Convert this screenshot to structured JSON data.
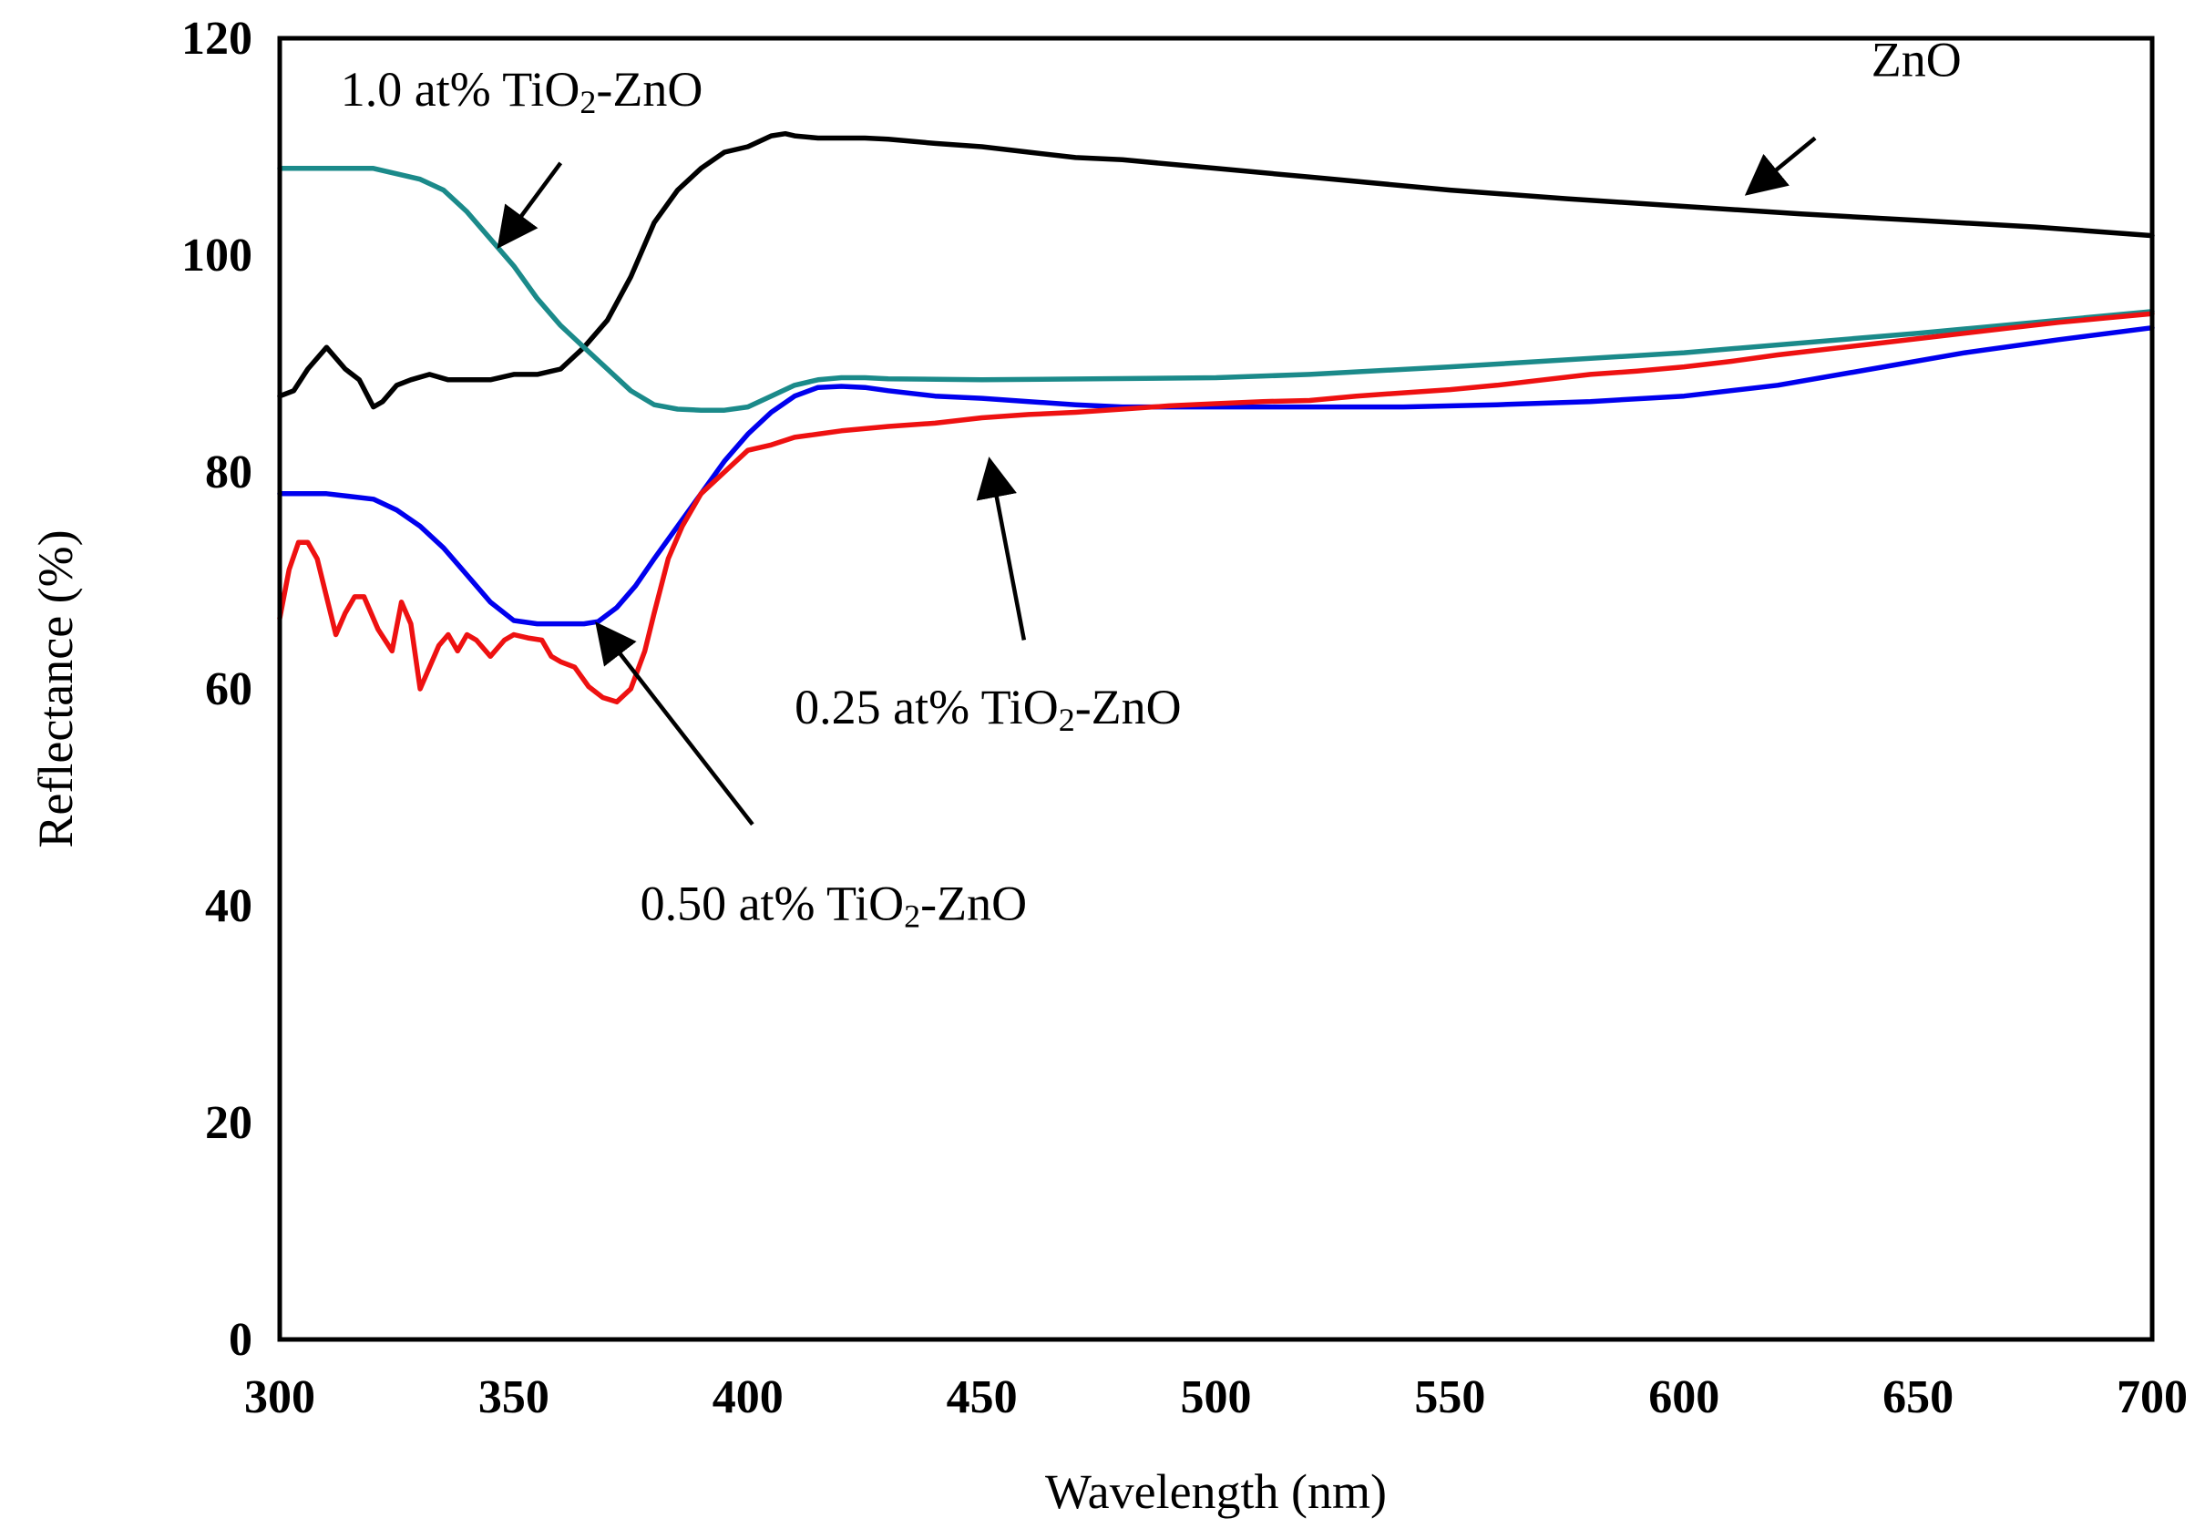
{
  "chart_data": {
    "type": "line",
    "title": "",
    "xlabel": "Wavelength (nm)",
    "ylabel": "Reflectance (%)",
    "xlim": [
      300,
      700
    ],
    "ylim": [
      0,
      120
    ],
    "xticks": [
      300,
      350,
      400,
      450,
      500,
      550,
      600,
      650,
      700
    ],
    "yticks": [
      0,
      20,
      40,
      60,
      80,
      100,
      120
    ],
    "grid": false,
    "series": [
      {
        "name": "ZnO",
        "label_main": "ZnO",
        "label_sub": "",
        "label_rest": "",
        "color": "#000000",
        "x": [
          300,
          303,
          306,
          310,
          314,
          317,
          320,
          322,
          325,
          328,
          332,
          336,
          340,
          345,
          350,
          355,
          360,
          365,
          370,
          375,
          380,
          385,
          390,
          395,
          400,
          405,
          408,
          410,
          415,
          420,
          425,
          430,
          440,
          450,
          460,
          470,
          480,
          500,
          520,
          550,
          575,
          600,
          625,
          650,
          675,
          700
        ],
        "y": [
          87,
          87.5,
          89.5,
          91.5,
          89.5,
          88.5,
          86,
          86.5,
          88,
          88.5,
          89,
          88.5,
          88.5,
          88.5,
          89,
          89,
          89.5,
          91.5,
          94,
          98,
          103,
          106,
          108,
          109.5,
          110,
          111,
          111.2,
          111,
          110.8,
          110.8,
          110.8,
          110.7,
          110.3,
          110,
          109.5,
          109,
          108.8,
          108,
          107.2,
          106,
          105.2,
          104.5,
          103.8,
          103.2,
          102.6,
          101.8
        ]
      },
      {
        "name": "1.0 at% TiO2-ZnO",
        "label_main": "1.0 at% TiO",
        "label_sub": "2",
        "label_rest": "-ZnO",
        "color": "#1b8a8a",
        "x": [
          300,
          310,
          320,
          330,
          335,
          340,
          345,
          350,
          355,
          360,
          365,
          370,
          375,
          380,
          385,
          390,
          395,
          400,
          405,
          410,
          415,
          420,
          425,
          430,
          450,
          500,
          520,
          550,
          600,
          650,
          700
        ],
        "y": [
          108,
          108,
          108,
          107,
          106,
          104,
          101.5,
          99,
          96,
          93.5,
          91.5,
          89.5,
          87.5,
          86.2,
          85.8,
          85.7,
          85.7,
          86,
          87,
          88,
          88.5,
          88.7,
          88.7,
          88.6,
          88.5,
          88.7,
          89,
          89.7,
          91,
          92.8,
          94.8
        ]
      },
      {
        "name": "0.50 at% TiO2-ZnO",
        "label_main": "0.50 at% TiO",
        "label_sub": "2",
        "label_rest": "-ZnO",
        "color": "#0000ee",
        "x": [
          300,
          310,
          320,
          325,
          330,
          335,
          340,
          345,
          350,
          355,
          360,
          365,
          368,
          372,
          376,
          380,
          385,
          390,
          395,
          400,
          405,
          410,
          415,
          420,
          425,
          430,
          440,
          450,
          460,
          470,
          480,
          490,
          500,
          520,
          540,
          560,
          580,
          600,
          620,
          640,
          660,
          680,
          700
        ],
        "y": [
          78,
          78,
          77.5,
          76.5,
          75,
          73,
          70.5,
          68,
          66.3,
          66,
          66,
          66,
          66.2,
          67.5,
          69.5,
          72,
          75,
          78,
          81,
          83.5,
          85.5,
          87,
          87.8,
          87.9,
          87.8,
          87.5,
          87,
          86.8,
          86.5,
          86.2,
          86,
          86,
          86,
          86,
          86,
          86.2,
          86.5,
          87,
          88,
          89.5,
          91,
          92.2,
          93.3
        ]
      },
      {
        "name": "0.25 at% TiO2-ZnO",
        "label_main": "0.25 at% TiO",
        "label_sub": "2",
        "label_rest": "-ZnO",
        "color": "#ee1111",
        "x": [
          300,
          302,
          304,
          306,
          308,
          312,
          314,
          316,
          318,
          321,
          324,
          326,
          328,
          330,
          332,
          334,
          336,
          338,
          340,
          342,
          345,
          348,
          350,
          353,
          356,
          358,
          360,
          363,
          366,
          369,
          372,
          375,
          378,
          380,
          383,
          386,
          390,
          395,
          400,
          405,
          410,
          415,
          420,
          425,
          430,
          440,
          450,
          460,
          470,
          480,
          490,
          500,
          510,
          520,
          525,
          530,
          540,
          550,
          560,
          570,
          580,
          590,
          600,
          610,
          620,
          630,
          640,
          650,
          660,
          670,
          680,
          690,
          700
        ],
        "y": [
          66.5,
          71,
          73.5,
          73.5,
          72,
          65,
          67,
          68.5,
          68.5,
          65.5,
          63.5,
          68,
          66,
          60,
          62,
          64,
          65,
          63.5,
          65,
          64.5,
          63,
          64.5,
          65,
          64.7,
          64.5,
          63,
          62.5,
          62,
          60.2,
          59.2,
          58.8,
          60,
          63.5,
          67,
          72,
          75,
          78,
          80,
          82,
          82.5,
          83.2,
          83.5,
          83.8,
          84,
          84.2,
          84.5,
          85,
          85.3,
          85.5,
          85.8,
          86.1,
          86.3,
          86.5,
          86.6,
          86.8,
          87,
          87.3,
          87.6,
          88,
          88.5,
          89,
          89.3,
          89.7,
          90.2,
          90.8,
          91.3,
          91.8,
          92.3,
          92.8,
          93.3,
          93.8,
          94.2,
          94.6
        ]
      }
    ],
    "annotations": [
      {
        "series": "ZnO",
        "text_main": "ZnO",
        "text_sub": "",
        "text_rest": "",
        "text_x": 640,
        "text_y": 116.5,
        "arrow_from": [
          628,
          110.8
        ],
        "arrow_to": [
          615,
          106.2
        ]
      },
      {
        "series": "1.0 at% TiO2-ZnO",
        "text_main": "1.0 at% TiO",
        "text_sub": "2",
        "text_rest": "-ZnO",
        "text_x": 313,
        "text_y": 113.8,
        "arrow_from": [
          360,
          108.5
        ],
        "arrow_to": [
          348,
          101.5
        ]
      },
      {
        "series": "0.25 at% TiO2-ZnO",
        "text_main": "0.25 at% TiO",
        "text_sub": "2",
        "text_rest": "-ZnO",
        "text_x": 410,
        "text_y": 56.8,
        "arrow_from": [
          459,
          64.5
        ],
        "arrow_to": [
          452,
          80.3
        ]
      },
      {
        "series": "0.50 at% TiO2-ZnO",
        "text_main": "0.50 at% TiO",
        "text_sub": "2",
        "text_rest": "-ZnO",
        "text_x": 377,
        "text_y": 38.7,
        "arrow_from": [
          401,
          47.5
        ],
        "arrow_to": [
          369,
          65.3
        ]
      }
    ]
  }
}
